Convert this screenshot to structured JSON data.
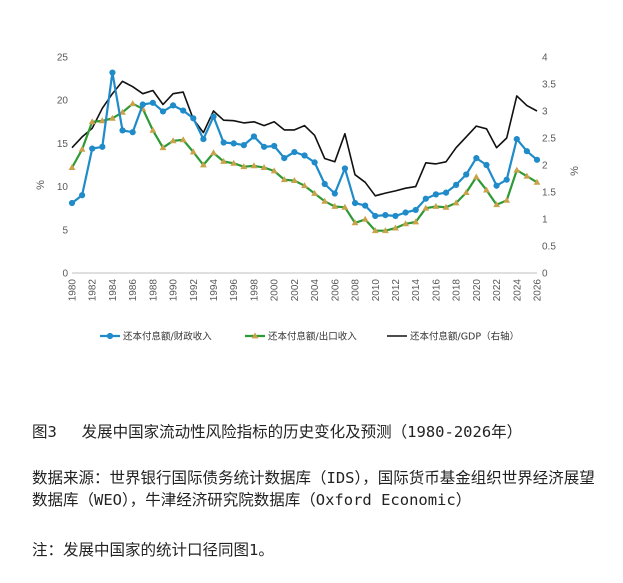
{
  "caption": {
    "title": "图3　 发展中国家流动性风险指标的历史变化及预测（1980-2026年）",
    "source": "数据来源：世界银行国际债务统计数据库（IDS），国际货币基金组织世界经济展望数据库（WEO），牛津经济研究院数据库（Oxford Economic）",
    "note": "注：发展中国家的统计口径同图1。"
  },
  "chart_data": {
    "type": "line",
    "title": "",
    "xlabel": "",
    "ylabel": "%",
    "y2label": "%",
    "ylim": [
      0,
      25
    ],
    "y2lim": [
      0,
      4
    ],
    "yticks": [
      0,
      5,
      10,
      15,
      20,
      25
    ],
    "y2ticks": [
      0,
      0.5,
      1,
      1.5,
      2,
      2.5,
      3,
      3.5,
      4
    ],
    "x": [
      1980,
      1981,
      1982,
      1983,
      1984,
      1985,
      1986,
      1987,
      1988,
      1989,
      1990,
      1991,
      1992,
      1993,
      1994,
      1995,
      1996,
      1997,
      1998,
      1999,
      2000,
      2001,
      2002,
      2003,
      2004,
      2005,
      2006,
      2007,
      2008,
      2009,
      2010,
      2011,
      2012,
      2013,
      2014,
      2015,
      2016,
      2017,
      2018,
      2019,
      2020,
      2021,
      2022,
      2023,
      2024,
      2025,
      2026
    ],
    "xticks": [
      1980,
      1982,
      1984,
      1986,
      1988,
      1990,
      1992,
      1994,
      1996,
      1998,
      2000,
      2002,
      2004,
      2006,
      2008,
      2010,
      2012,
      2014,
      2016,
      2018,
      2020,
      2022,
      2024,
      2026
    ],
    "grid": false,
    "legend_position": "bottom",
    "series": [
      {
        "name": "还本付息额/财政收入",
        "axis": "left",
        "color": "#1f8bc9",
        "marker": "circle",
        "values": [
          8.1,
          9.0,
          14.4,
          14.6,
          23.2,
          16.5,
          16.3,
          19.5,
          19.7,
          18.7,
          19.4,
          18.8,
          17.9,
          15.5,
          18.1,
          15.1,
          15.0,
          14.8,
          15.8,
          14.6,
          14.7,
          13.3,
          14.0,
          13.6,
          12.8,
          10.3,
          9.2,
          12.1,
          8.1,
          7.8,
          6.6,
          6.7,
          6.6,
          7.0,
          7.3,
          8.6,
          9.1,
          9.3,
          10.2,
          11.4,
          13.3,
          12.5,
          10.1,
          10.8,
          15.5,
          14.1,
          13.1
        ]
      },
      {
        "name": "还本付息额/出口收入",
        "axis": "left",
        "color": "#2e9a35",
        "marker": "triangle",
        "marker_color": "#c9a24a",
        "values": [
          12.2,
          14.3,
          17.5,
          17.6,
          17.9,
          18.6,
          19.6,
          19.0,
          16.5,
          14.5,
          15.3,
          15.4,
          14.0,
          12.5,
          13.9,
          12.9,
          12.7,
          12.3,
          12.4,
          12.2,
          11.8,
          10.8,
          10.7,
          10.1,
          9.2,
          8.3,
          7.7,
          7.6,
          5.8,
          6.2,
          4.9,
          4.9,
          5.2,
          5.7,
          5.9,
          7.5,
          7.7,
          7.6,
          8.1,
          9.3,
          11.1,
          9.6,
          7.9,
          8.4,
          11.9,
          11.2,
          10.5
        ]
      },
      {
        "name": "还本付息额/GDP（右轴）",
        "axis": "right",
        "color": "#111111",
        "marker": "none",
        "values": [
          2.32,
          2.52,
          2.68,
          3.05,
          3.32,
          3.55,
          3.45,
          3.32,
          3.38,
          3.12,
          3.32,
          3.35,
          2.85,
          2.6,
          3.0,
          2.83,
          2.82,
          2.78,
          2.8,
          2.73,
          2.8,
          2.65,
          2.65,
          2.73,
          2.55,
          2.12,
          2.06,
          2.58,
          1.82,
          1.68,
          1.43,
          1.48,
          1.52,
          1.57,
          1.6,
          2.04,
          2.02,
          2.06,
          2.32,
          2.52,
          2.72,
          2.67,
          2.32,
          2.5,
          3.28,
          3.1,
          3.0
        ]
      }
    ]
  }
}
